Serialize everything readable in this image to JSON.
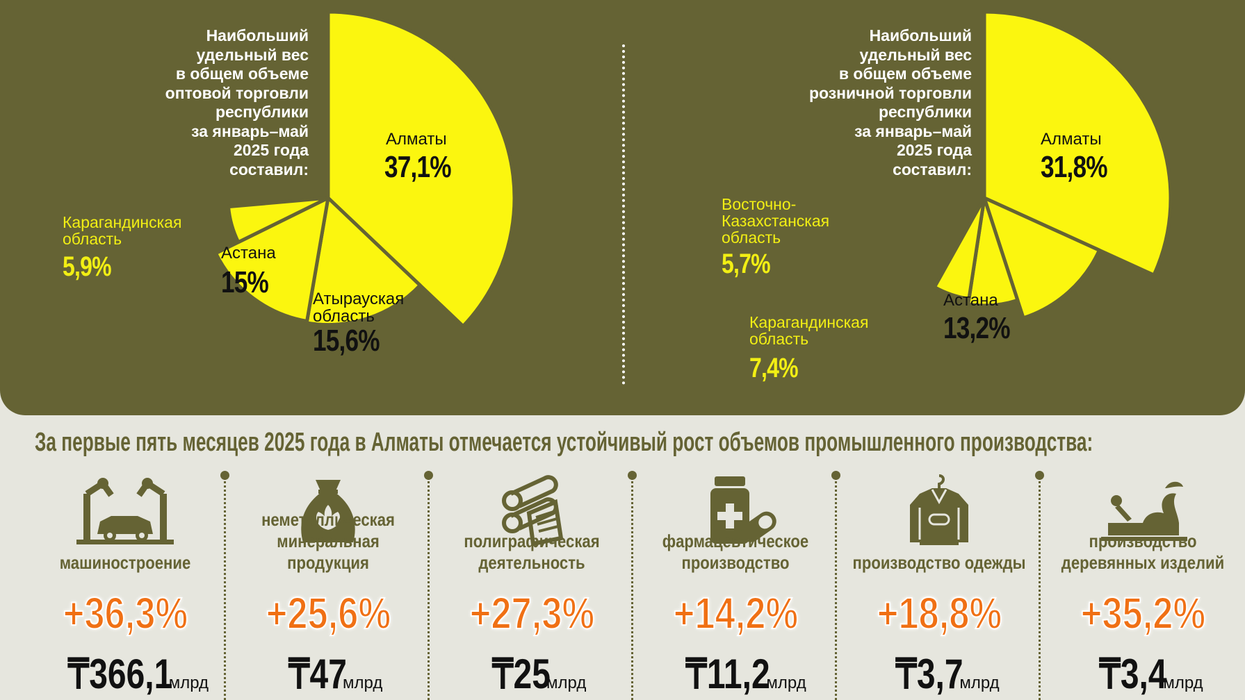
{
  "chart_data": [
    {
      "type": "pie",
      "intro": "Наибольший\nудельный вес\nв общем объеме\nоптовой торговли\nреспублики\nза январь–май\n2025 года\nсоставил:",
      "slices": [
        {
          "name": "Алматы",
          "value": 37.1,
          "label": "37,1%"
        },
        {
          "name": "Атырауская\nобласть",
          "value": 15.6,
          "label": "15,6%"
        },
        {
          "name": "Астана",
          "value": 15.0,
          "label": "15%"
        },
        {
          "name": "Карагандинская\nобласть",
          "value": 5.9,
          "label": "5,9%"
        }
      ]
    },
    {
      "type": "pie",
      "intro": "Наибольший\nудельный вес\nв общем объеме\nрозничной торговли\nреспублики\nза январь–май\n2025 года\nсоставил:",
      "slices": [
        {
          "name": "Алматы",
          "value": 31.8,
          "label": "31,8%"
        },
        {
          "name": "Астана",
          "value": 13.2,
          "label": "13,2%"
        },
        {
          "name": "Карагандинская\nобласть",
          "value": 7.4,
          "label": "7,4%"
        },
        {
          "name": "Восточно-\nКазахстанская\nобласть",
          "value": 5.7,
          "label": "5,7%"
        }
      ]
    }
  ],
  "headline": "За первые пять месяцев 2025 года в Алматы отмечается устойчивый рост объемов промышленного производства:",
  "industries": [
    {
      "name": "машиностроение",
      "growth": "+36,3%",
      "amount": "₸366,1",
      "unit": "млрд",
      "icon": "robot-arm-car-icon"
    },
    {
      "name": "неметаллическая\nминеральная продукция",
      "growth": "+25,6%",
      "amount": "₸47",
      "unit": "млрд",
      "icon": "mineral-sack-icon"
    },
    {
      "name": "полиграфическая\nдеятельность",
      "growth": "+27,3%",
      "amount": "₸25",
      "unit": "млрд",
      "icon": "printing-rolls-icon"
    },
    {
      "name": "фармацевтическое\nпроизводство",
      "growth": "+14,2%",
      "amount": "₸11,2",
      "unit": "млрд",
      "icon": "medicine-bottle-pill-icon"
    },
    {
      "name": "производство одежды",
      "growth": "+18,8%",
      "amount": "₸3,7",
      "unit": "млрд",
      "icon": "jacket-hanger-icon"
    },
    {
      "name": "производство\nдеревянных изделий",
      "growth": "+35,2%",
      "amount": "₸3,4",
      "unit": "млрд",
      "icon": "wood-plane-icon"
    }
  ],
  "colors": {
    "panel": "#656334",
    "slice": "#fbf60f",
    "slice_outline": "#656334",
    "growth": "#f07014",
    "background": "#e6e6de"
  }
}
